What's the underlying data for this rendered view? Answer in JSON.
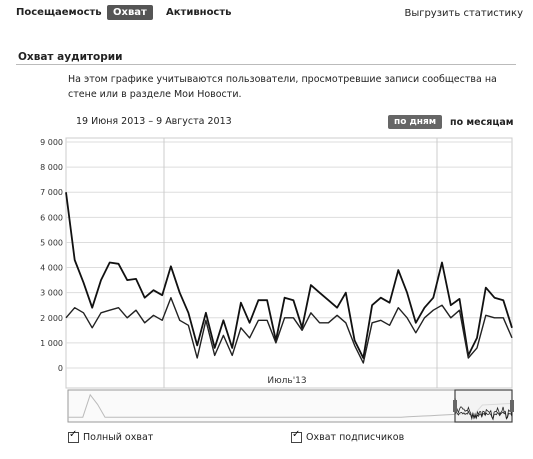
{
  "tabs": [
    {
      "label": "Посещаемость",
      "active": false
    },
    {
      "label": "Охват",
      "active": true
    },
    {
      "label": "Активность",
      "active": false
    }
  ],
  "export_label": "Выгрузить статистику",
  "section": {
    "title": "Охват аудитории",
    "description": "На этом графике учитываются пользователи, просмотревшие записи сообщества на стене или в разделе Мои Новости."
  },
  "controls": {
    "date_range": "19 Июня 2013 – 9 Августа 2013",
    "by_days": "по дням",
    "by_months": "по месяцам"
  },
  "chart_data": {
    "type": "line",
    "y_ticks": [
      "9 000",
      "8 000",
      "7 000",
      "6 000",
      "5 000",
      "4 000",
      "3 000",
      "2 000",
      "1 000",
      "0"
    ],
    "ylim": [
      0,
      9000
    ],
    "x_label": "Июль'13",
    "grid": true,
    "series": [
      {
        "name": "Полный охват",
        "color": "#111111",
        "values": [
          7000,
          4300,
          3400,
          2400,
          3500,
          4200,
          4150,
          3500,
          3550,
          2800,
          3100,
          2900,
          4050,
          3000,
          2200,
          900,
          2200,
          800,
          1900,
          800,
          2600,
          1800,
          2700,
          2700,
          1100,
          2800,
          2700,
          1600,
          3300,
          3000,
          2700,
          2400,
          3000,
          1100,
          400,
          2500,
          2800,
          2600,
          3900,
          3000,
          1800,
          2400,
          2800,
          4200,
          2500,
          2750,
          500,
          1200,
          3200,
          2800,
          2700,
          1600
        ]
      },
      {
        "name": "Охват подписчиков",
        "color": "#222222",
        "values": [
          2000,
          2400,
          2200,
          1600,
          2200,
          2300,
          2400,
          2000,
          2300,
          1800,
          2100,
          1900,
          2800,
          1900,
          1700,
          400,
          1900,
          500,
          1300,
          500,
          1600,
          1200,
          1900,
          1900,
          1000,
          2000,
          2000,
          1500,
          2200,
          1800,
          1800,
          2100,
          1800,
          900,
          200,
          1800,
          1900,
          1700,
          2400,
          2000,
          1400,
          2000,
          2300,
          2500,
          2000,
          2300,
          400,
          800,
          2100,
          2000,
          2000,
          1200
        ]
      }
    ],
    "legend": [
      {
        "label": "Полный охват",
        "checked": true
      },
      {
        "label": "Охват подписчиков",
        "checked": true
      }
    ]
  }
}
